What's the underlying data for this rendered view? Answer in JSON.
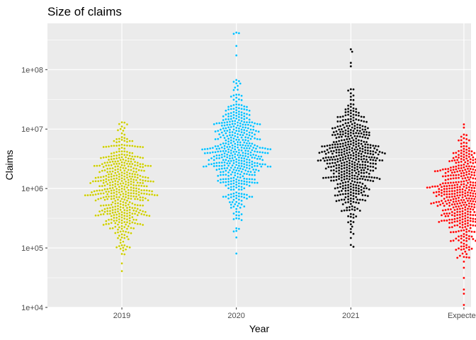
{
  "chart_data": {
    "type": "scatter",
    "subtype": "beeswarm",
    "title": "Size of claims",
    "xlabel": "Year",
    "ylabel": "Claims",
    "yscale": "log10",
    "ylim": [
      10000,
      600000000
    ],
    "yticks": [
      {
        "value": 10000,
        "label": "1e+04"
      },
      {
        "value": 100000,
        "label": "1e+05"
      },
      {
        "value": 1000000,
        "label": "1e+06"
      },
      {
        "value": 10000000,
        "label": "1e+07"
      },
      {
        "value": 100000000,
        "label": "1e+08"
      }
    ],
    "categories": [
      "2019",
      "2020",
      "2021",
      "Expected"
    ],
    "grid": true,
    "legend": "none",
    "series": [
      {
        "category": "2019",
        "color": "#cccc00",
        "point_count": 500,
        "min": 40000,
        "max": 13000000,
        "median": 1000000,
        "spread_log10": 0.48,
        "outliers": [
          13000000,
          6000000,
          5200000
        ]
      },
      {
        "category": "2020",
        "color": "#00bfff",
        "point_count": 500,
        "min": 42000,
        "max": 420000000,
        "median": 4000000,
        "spread_log10": 0.5,
        "outliers": [
          420000000,
          410000000,
          400000000,
          250000000
        ]
      },
      {
        "category": "2021",
        "color": "#000000",
        "point_count": 500,
        "min": 40000,
        "max": 220000000,
        "median": 3000000,
        "spread_log10": 0.5,
        "outliers": [
          220000000,
          200000000,
          130000000
        ]
      },
      {
        "category": "Expected",
        "color": "#ff0000",
        "point_count": 500,
        "min": 11000,
        "max": 12000000,
        "median": 700000,
        "spread_log10": 0.45,
        "outliers": [
          12000000,
          11000,
          17000,
          20000
        ]
      }
    ]
  }
}
